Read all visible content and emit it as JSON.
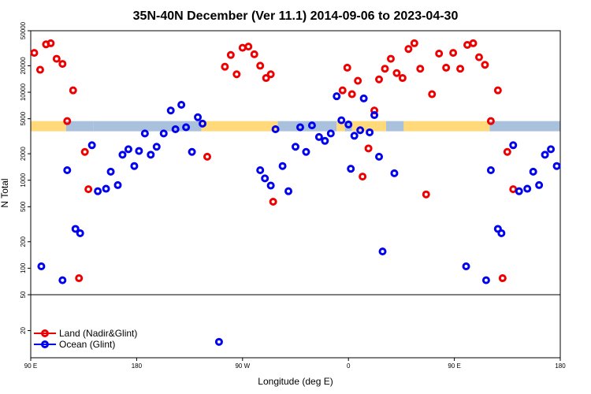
{
  "chart_data": {
    "type": "scatter",
    "title": "35N-40N December (Ver 11.1)   2014-09-06 to 2023-04-30",
    "xlabel": "Longitude (deg E)",
    "ylabel": "N Total",
    "y_scale": "log",
    "xlim": [
      90,
      540
    ],
    "ylim": [
      10,
      50000
    ],
    "x_ticks": [
      {
        "value": 90,
        "label": "90 E"
      },
      {
        "value": 180,
        "label": "180"
      },
      {
        "value": 270,
        "label": "90 W"
      },
      {
        "value": 360,
        "label": "0"
      },
      {
        "value": 450,
        "label": "90 E"
      },
      {
        "value": 540,
        "label": "180"
      }
    ],
    "y_ticks_upper": [
      {
        "value": 100,
        "label": "100"
      },
      {
        "value": 200,
        "label": "200"
      },
      {
        "value": 500,
        "label": "500"
      },
      {
        "value": 1000,
        "label": "1000"
      },
      {
        "value": 2000,
        "label": "2000"
      },
      {
        "value": 5000,
        "label": "5000"
      },
      {
        "value": 10000,
        "label": "10000"
      },
      {
        "value": 20000,
        "label": "20000"
      },
      {
        "value": 50000,
        "label": "50000"
      }
    ],
    "y_ticks_lower": [
      {
        "value": 20,
        "label": "20"
      },
      {
        "value": 50,
        "label": "50"
      }
    ],
    "panel_break": 50,
    "map_band": {
      "range": [
        3600,
        4700
      ],
      "land_color": "#ffd97a",
      "ocean_color": "#a9c1dd"
    },
    "legend": {
      "placement": "bottom-left"
    },
    "series": [
      {
        "name": "Land (Nadir&Glint)",
        "color": "#ee0000",
        "points": [
          [
            93,
            28000
          ],
          [
            98,
            18000
          ],
          [
            103,
            35000
          ],
          [
            107,
            36000
          ],
          [
            112,
            24000
          ],
          [
            117,
            21000
          ],
          [
            121,
            4700
          ],
          [
            126,
            10500
          ],
          [
            131,
            77
          ],
          [
            136,
            2100
          ],
          [
            139,
            790
          ],
          [
            240,
            1850
          ],
          [
            255,
            19500
          ],
          [
            260,
            26500
          ],
          [
            265,
            16000
          ],
          [
            270,
            32000
          ],
          [
            275,
            33000
          ],
          [
            280,
            27000
          ],
          [
            285,
            20000
          ],
          [
            290,
            14500
          ],
          [
            294,
            16000
          ],
          [
            296,
            570
          ],
          [
            355,
            10500
          ],
          [
            359,
            19000
          ],
          [
            363,
            9500
          ],
          [
            368,
            13500
          ],
          [
            372,
            1100
          ],
          [
            377,
            2300
          ],
          [
            382,
            6200
          ],
          [
            386,
            14000
          ],
          [
            391,
            18500
          ],
          [
            396,
            24000
          ],
          [
            401,
            16500
          ],
          [
            406,
            14500
          ],
          [
            411,
            31000
          ],
          [
            416,
            36000
          ],
          [
            421,
            18500
          ],
          [
            426,
            690
          ],
          [
            431,
            9500
          ],
          [
            437,
            27500
          ],
          [
            443,
            19000
          ],
          [
            449,
            28000
          ],
          [
            455,
            18500
          ],
          [
            461,
            34500
          ],
          [
            466,
            36000
          ],
          [
            471,
            25000
          ],
          [
            476,
            20500
          ],
          [
            481,
            4700
          ],
          [
            487,
            10500
          ],
          [
            491,
            77
          ],
          [
            495,
            2100
          ],
          [
            500,
            790
          ]
        ]
      },
      {
        "name": "Ocean (Glint)",
        "color": "#0000ee",
        "points": [
          [
            99,
            105
          ],
          [
            117,
            73
          ],
          [
            121,
            1300
          ],
          [
            128,
            280
          ],
          [
            132,
            250
          ],
          [
            142,
            2500
          ],
          [
            147,
            750
          ],
          [
            154,
            800
          ],
          [
            158,
            1250
          ],
          [
            164,
            880
          ],
          [
            168,
            1950
          ],
          [
            173,
            2250
          ],
          [
            178,
            1450
          ],
          [
            182,
            2150
          ],
          [
            187,
            3400
          ],
          [
            192,
            1950
          ],
          [
            197,
            2400
          ],
          [
            203,
            3400
          ],
          [
            209,
            6200
          ],
          [
            213,
            3800
          ],
          [
            218,
            7200
          ],
          [
            222,
            4000
          ],
          [
            227,
            2100
          ],
          [
            232,
            5200
          ],
          [
            236,
            4400
          ],
          [
            250,
            15
          ],
          [
            285,
            1300
          ],
          [
            289,
            1050
          ],
          [
            294,
            870
          ],
          [
            298,
            3800
          ],
          [
            304,
            1450
          ],
          [
            309,
            750
          ],
          [
            315,
            2400
          ],
          [
            319,
            4000
          ],
          [
            324,
            2100
          ],
          [
            329,
            4200
          ],
          [
            335,
            3100
          ],
          [
            340,
            2800
          ],
          [
            345,
            3400
          ],
          [
            350,
            9000
          ],
          [
            354,
            4800
          ],
          [
            360,
            4300
          ],
          [
            362,
            1350
          ],
          [
            365,
            3200
          ],
          [
            370,
            3700
          ],
          [
            373,
            8500
          ],
          [
            378,
            3500
          ],
          [
            382,
            5500
          ],
          [
            386,
            1850
          ],
          [
            389,
            155
          ],
          [
            399,
            1200
          ],
          [
            460,
            105
          ],
          [
            477,
            73
          ],
          [
            481,
            1300
          ],
          [
            487,
            280
          ],
          [
            490,
            250
          ],
          [
            500,
            2500
          ],
          [
            505,
            750
          ],
          [
            512,
            800
          ],
          [
            517,
            1250
          ],
          [
            522,
            880
          ],
          [
            527,
            1950
          ],
          [
            532,
            2250
          ],
          [
            537,
            1450
          ]
        ]
      }
    ]
  }
}
